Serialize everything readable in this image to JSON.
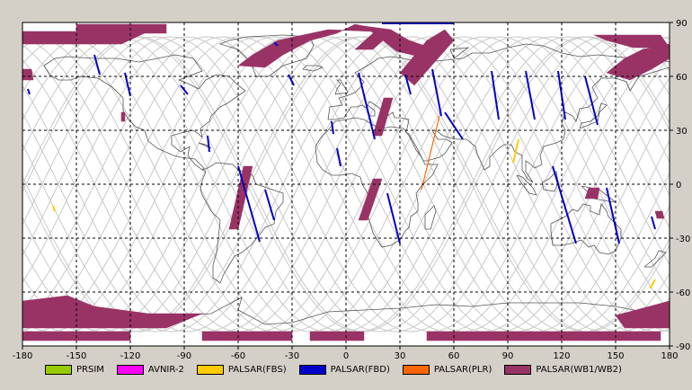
{
  "map": {
    "x_ticks": [
      "-180",
      "-150",
      "-120",
      "-90",
      "-60",
      "-30",
      "0",
      "30",
      "60",
      "90",
      "120",
      "150",
      "180"
    ],
    "y_ticks": [
      "90",
      "60",
      "30",
      "0",
      "-30",
      "-60",
      "-90"
    ],
    "x_range": [
      -180,
      180
    ],
    "y_range": [
      -90,
      90
    ],
    "grid": "dashed",
    "legend_position": "bottom"
  },
  "legend": [
    {
      "label": "PRSIM",
      "color": "#99cc00"
    },
    {
      "label": "AVNIR-2",
      "color": "#ff00ff"
    },
    {
      "label": "PALSAR(FBS)",
      "color": "#ffcc00"
    },
    {
      "label": "PALSAR(FBD)",
      "color": "#0000cc"
    },
    {
      "label": "PALSAR(PLR)",
      "color": "#ff6600"
    },
    {
      "label": "PALSAR(WB1/WB2)",
      "color": "#993366"
    }
  ],
  "colors": {
    "background": "#ffffff",
    "frame": "#d4d0c8",
    "coastline": "#555555",
    "orbit_track": "#c8c8c8",
    "grid": "#000000"
  },
  "observations": {
    "fbd": [
      [
        [
          -177,
          53
        ],
        [
          -176,
          50
        ]
      ],
      [
        [
          -140,
          72
        ],
        [
          -137,
          61
        ]
      ],
      [
        [
          -123,
          62
        ],
        [
          -120,
          49
        ]
      ],
      [
        [
          -92,
          55
        ],
        [
          -88,
          50
        ]
      ],
      [
        [
          -77,
          27
        ],
        [
          -76,
          18
        ]
      ],
      [
        [
          -32,
          61
        ],
        [
          -29,
          55
        ]
      ],
      [
        [
          -60,
          10
        ],
        [
          -48,
          -32
        ]
      ],
      [
        [
          -45,
          -3
        ],
        [
          -40,
          -20
        ]
      ],
      [
        [
          -8,
          35
        ],
        [
          -7,
          28
        ]
      ],
      [
        [
          -5,
          20
        ],
        [
          -3,
          10
        ]
      ],
      [
        [
          7,
          62
        ],
        [
          16,
          25
        ]
      ],
      [
        [
          23,
          -5
        ],
        [
          30,
          -33
        ]
      ],
      [
        [
          33,
          61
        ],
        [
          36,
          50
        ]
      ],
      [
        [
          48,
          64
        ],
        [
          53,
          38
        ]
      ],
      [
        [
          55,
          40
        ],
        [
          65,
          25
        ]
      ],
      [
        [
          81,
          63
        ],
        [
          85,
          36
        ]
      ],
      [
        [
          100,
          63
        ],
        [
          105,
          36
        ]
      ],
      [
        [
          118,
          63
        ],
        [
          122,
          36
        ]
      ],
      [
        [
          115,
          10
        ],
        [
          128,
          -33
        ]
      ],
      [
        [
          133,
          60
        ],
        [
          140,
          33
        ]
      ],
      [
        [
          145,
          -2
        ],
        [
          152,
          -33
        ]
      ],
      [
        [
          170,
          -18
        ],
        [
          172,
          -25
        ]
      ],
      [
        [
          -40,
          79
        ],
        [
          -38,
          77
        ]
      ],
      [
        [
          20,
          89.5
        ],
        [
          60,
          89.5
        ]
      ]
    ],
    "fbs": [
      [
        [
          96,
          25
        ],
        [
          93,
          12
        ]
      ],
      [
        [
          172,
          -53
        ],
        [
          169,
          -58
        ]
      ],
      [
        [
          -163,
          -12
        ],
        [
          -162,
          -15
        ]
      ]
    ],
    "plr": [
      [
        [
          52,
          38
        ],
        [
          42,
          -3
        ]
      ]
    ],
    "wb": [
      [
        [
          [
            -180,
            85
          ],
          [
            -110,
            85
          ],
          [
            -125,
            78
          ],
          [
            -180,
            78
          ]
        ]
      ],
      [
        [
          [
            -150,
            89
          ],
          [
            -150,
            84
          ],
          [
            -100,
            84
          ],
          [
            -100,
            89
          ]
        ]
      ],
      [
        [
          [
            -38,
            80
          ],
          [
            -52,
            72
          ],
          [
            -60,
            66
          ],
          [
            -45,
            65
          ],
          [
            -35,
            72
          ],
          [
            -20,
            80
          ],
          [
            -5,
            84
          ],
          [
            5,
            89
          ],
          [
            10,
            88
          ],
          [
            15,
            85
          ],
          [
            -10,
            86
          ]
        ]
      ],
      [
        [
          [
            25,
            86
          ],
          [
            35,
            80
          ],
          [
            50,
            75
          ],
          [
            45,
            70
          ],
          [
            28,
            74
          ],
          [
            18,
            82
          ],
          [
            10,
            88
          ]
        ]
      ],
      [
        [
          [
            30,
            62
          ],
          [
            38,
            55
          ],
          [
            45,
            63
          ],
          [
            60,
            80
          ],
          [
            55,
            86
          ],
          [
            45,
            80
          ]
        ]
      ],
      [
        [
          [
            138,
            83
          ],
          [
            175,
            83
          ],
          [
            180,
            76
          ],
          [
            160,
            76
          ],
          [
            145,
            80
          ]
        ]
      ],
      [
        [
          [
            145,
            62
          ],
          [
            155,
            70
          ],
          [
            165,
            75
          ],
          [
            180,
            78
          ],
          [
            180,
            70
          ],
          [
            170,
            64
          ],
          [
            158,
            58
          ]
        ]
      ],
      [
        [
          [
            -125,
            40
          ],
          [
            -123,
            40
          ],
          [
            -123,
            35
          ],
          [
            -125,
            35
          ]
        ]
      ],
      [
        [
          [
            -57,
            10
          ],
          [
            -52,
            10
          ],
          [
            -60,
            -25
          ],
          [
            -65,
            -25
          ]
        ]
      ],
      [
        [
          [
            21,
            48
          ],
          [
            26,
            48
          ],
          [
            20,
            27
          ],
          [
            15,
            27
          ]
        ]
      ],
      [
        [
          [
            15,
            3
          ],
          [
            20,
            3
          ],
          [
            12,
            -20
          ],
          [
            7,
            -20
          ]
        ]
      ],
      [
        [
          [
            -180,
            -65
          ],
          [
            -155,
            -62
          ],
          [
            -140,
            -68
          ],
          [
            -110,
            -72
          ],
          [
            -80,
            -72
          ],
          [
            -100,
            -80
          ],
          [
            -150,
            -80
          ],
          [
            -180,
            -80
          ]
        ]
      ],
      [
        [
          [
            -180,
            -82
          ],
          [
            -120,
            -82
          ],
          [
            -120,
            -87
          ],
          [
            -180,
            -87
          ]
        ]
      ],
      [
        [
          [
            -80,
            -82
          ],
          [
            -30,
            -82
          ],
          [
            -30,
            -87
          ],
          [
            -80,
            -87
          ]
        ]
      ],
      [
        [
          [
            -20,
            -82
          ],
          [
            10,
            -82
          ],
          [
            10,
            -87
          ],
          [
            -20,
            -87
          ]
        ]
      ],
      [
        [
          [
            45,
            -82
          ],
          [
            175,
            -82
          ],
          [
            175,
            -87
          ],
          [
            45,
            -87
          ]
        ]
      ],
      [
        [
          [
            150,
            -73
          ],
          [
            180,
            -65
          ],
          [
            180,
            -80
          ],
          [
            155,
            -80
          ]
        ]
      ],
      [
        [
          [
            -167,
            -68
          ],
          [
            -150,
            -66
          ],
          [
            -150,
            -70
          ],
          [
            -165,
            -72
          ]
        ]
      ],
      [
        [
          [
            135,
            -2
          ],
          [
            141,
            -2
          ],
          [
            140,
            -8
          ],
          [
            133,
            -8
          ]
        ]
      ],
      [
        [
          [
            172,
            -15
          ],
          [
            176,
            -15
          ],
          [
            177,
            -19
          ],
          [
            173,
            -19
          ]
        ]
      ],
      [
        [
          [
            5,
            75
          ],
          [
            15,
            75
          ],
          [
            25,
            84
          ],
          [
            15,
            84
          ]
        ]
      ],
      [
        [
          [
            -180,
            64
          ],
          [
            -175,
            64
          ],
          [
            -174,
            58
          ],
          [
            -180,
            58
          ]
        ]
      ]
    ]
  }
}
